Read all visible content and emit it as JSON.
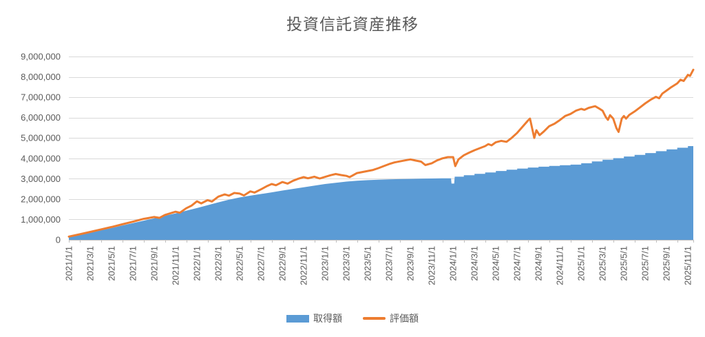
{
  "title": "投資信託資産推移",
  "legend": {
    "acquisition_label": "取得額",
    "valuation_label": "評価額"
  },
  "colors": {
    "acquisition_area": "#5B9BD5",
    "valuation_line": "#ED7D31",
    "gridline": "#D9D9D9",
    "axis": "#BFBFBF",
    "text": "#595959"
  },
  "chart_data": {
    "type": "area",
    "title": "投資信託資産推移",
    "xlabel": "",
    "ylabel": "",
    "x_unit": "months_since_2021_01_01",
    "x_max": 58.5,
    "ylim": [
      0,
      9000000
    ],
    "y_ticks": [
      0,
      1000000,
      2000000,
      3000000,
      4000000,
      5000000,
      6000000,
      7000000,
      8000000,
      9000000
    ],
    "grid": "horizontal",
    "legend_position": "bottom",
    "x_tick_interval_months": 2,
    "x_tick_labels": [
      "2021/1/1",
      "2021/3/1",
      "2021/5/1",
      "2021/7/1",
      "2021/9/1",
      "2021/11/1",
      "2022/1/1",
      "2022/3/1",
      "2022/5/1",
      "2022/7/1",
      "2022/9/1",
      "2022/11/1",
      "2023/1/1",
      "2023/3/1",
      "2023/5/1",
      "2023/7/1",
      "2023/9/1",
      "2023/11/1",
      "2024/1/1",
      "2024/3/1",
      "2024/5/1",
      "2024/7/1",
      "2024/9/1",
      "2024/11/1",
      "2025/1/1",
      "2025/3/1",
      "2025/5/1",
      "2025/7/1",
      "2025/9/1",
      "2025/11/1"
    ],
    "series": [
      {
        "name": "取得額",
        "type": "area",
        "color": "#5B9BD5",
        "points": [
          [
            0,
            150000
          ],
          [
            1,
            250000
          ],
          [
            2,
            360000
          ],
          [
            3,
            470000
          ],
          [
            4,
            580000
          ],
          [
            5,
            700000
          ],
          [
            6,
            820000
          ],
          [
            7,
            940000
          ],
          [
            8,
            1060000
          ],
          [
            9,
            1180000
          ],
          [
            10,
            1300000
          ],
          [
            11,
            1430000
          ],
          [
            12,
            1560000
          ],
          [
            13,
            1700000
          ],
          [
            14,
            1840000
          ],
          [
            15,
            1970000
          ],
          [
            16,
            2080000
          ],
          [
            17,
            2170000
          ],
          [
            18,
            2250000
          ],
          [
            19,
            2330000
          ],
          [
            20,
            2420000
          ],
          [
            21,
            2500000
          ],
          [
            22,
            2580000
          ],
          [
            23,
            2660000
          ],
          [
            24,
            2740000
          ],
          [
            25,
            2800000
          ],
          [
            26,
            2860000
          ],
          [
            27,
            2900000
          ],
          [
            28,
            2930000
          ],
          [
            29,
            2950000
          ],
          [
            30,
            2970000
          ],
          [
            31,
            2980000
          ],
          [
            32,
            2990000
          ],
          [
            33,
            3000000
          ],
          [
            34,
            3010000
          ],
          [
            35,
            3020000
          ],
          [
            35.8,
            3020000
          ],
          [
            35.85,
            2760000
          ],
          [
            36.1,
            2760000
          ],
          [
            36.15,
            3100000
          ],
          [
            37,
            3100000
          ],
          [
            37,
            3170000
          ],
          [
            38,
            3170000
          ],
          [
            38,
            3240000
          ],
          [
            39,
            3240000
          ],
          [
            39,
            3310000
          ],
          [
            40,
            3310000
          ],
          [
            40,
            3380000
          ],
          [
            41,
            3380000
          ],
          [
            41,
            3440000
          ],
          [
            42,
            3440000
          ],
          [
            42,
            3500000
          ],
          [
            43,
            3500000
          ],
          [
            43,
            3550000
          ],
          [
            44,
            3550000
          ],
          [
            44,
            3590000
          ],
          [
            45,
            3590000
          ],
          [
            45,
            3630000
          ],
          [
            46,
            3630000
          ],
          [
            46,
            3660000
          ],
          [
            47,
            3660000
          ],
          [
            47,
            3690000
          ],
          [
            48,
            3690000
          ],
          [
            48,
            3760000
          ],
          [
            49,
            3760000
          ],
          [
            49,
            3850000
          ],
          [
            50,
            3850000
          ],
          [
            50,
            3930000
          ],
          [
            51,
            3930000
          ],
          [
            51,
            4010000
          ],
          [
            52,
            4010000
          ],
          [
            52,
            4090000
          ],
          [
            53,
            4090000
          ],
          [
            53,
            4170000
          ],
          [
            54,
            4170000
          ],
          [
            54,
            4260000
          ],
          [
            55,
            4260000
          ],
          [
            55,
            4350000
          ],
          [
            56,
            4350000
          ],
          [
            56,
            4440000
          ],
          [
            57,
            4440000
          ],
          [
            57,
            4520000
          ],
          [
            58,
            4520000
          ],
          [
            58,
            4600000
          ],
          [
            58.5,
            4600000
          ]
        ]
      },
      {
        "name": "評価額",
        "type": "line",
        "color": "#ED7D31",
        "stroke_width": 3,
        "points": [
          [
            0,
            160000
          ],
          [
            1,
            270000
          ],
          [
            2,
            390000
          ],
          [
            3,
            510000
          ],
          [
            4,
            630000
          ],
          [
            5,
            760000
          ],
          [
            6,
            890000
          ],
          [
            7,
            1030000
          ],
          [
            8,
            1120000
          ],
          [
            8.5,
            1080000
          ],
          [
            9,
            1220000
          ],
          [
            10,
            1380000
          ],
          [
            10.4,
            1330000
          ],
          [
            11,
            1550000
          ],
          [
            11.5,
            1680000
          ],
          [
            12,
            1890000
          ],
          [
            12.4,
            1790000
          ],
          [
            13,
            1950000
          ],
          [
            13.4,
            1880000
          ],
          [
            14,
            2120000
          ],
          [
            14.6,
            2230000
          ],
          [
            15,
            2170000
          ],
          [
            15.5,
            2300000
          ],
          [
            16,
            2270000
          ],
          [
            16.4,
            2180000
          ],
          [
            17,
            2380000
          ],
          [
            17.4,
            2320000
          ],
          [
            18,
            2480000
          ],
          [
            18.6,
            2650000
          ],
          [
            19,
            2740000
          ],
          [
            19.4,
            2680000
          ],
          [
            20,
            2840000
          ],
          [
            20.5,
            2760000
          ],
          [
            21,
            2900000
          ],
          [
            21.5,
            3000000
          ],
          [
            22,
            3080000
          ],
          [
            22.4,
            3020000
          ],
          [
            23,
            3100000
          ],
          [
            23.5,
            3010000
          ],
          [
            24,
            3090000
          ],
          [
            24.5,
            3170000
          ],
          [
            25,
            3230000
          ],
          [
            25.5,
            3180000
          ],
          [
            26,
            3140000
          ],
          [
            26.3,
            3080000
          ],
          [
            27,
            3280000
          ],
          [
            27.5,
            3330000
          ],
          [
            28,
            3380000
          ],
          [
            28.5,
            3430000
          ],
          [
            29,
            3520000
          ],
          [
            29.5,
            3620000
          ],
          [
            30,
            3720000
          ],
          [
            30.5,
            3800000
          ],
          [
            31,
            3850000
          ],
          [
            31.5,
            3900000
          ],
          [
            32,
            3950000
          ],
          [
            32.5,
            3890000
          ],
          [
            33,
            3840000
          ],
          [
            33.4,
            3670000
          ],
          [
            34,
            3760000
          ],
          [
            34.5,
            3900000
          ],
          [
            35,
            4000000
          ],
          [
            35.5,
            4060000
          ],
          [
            36,
            4060000
          ],
          [
            36.2,
            3620000
          ],
          [
            36.5,
            3950000
          ],
          [
            37,
            4150000
          ],
          [
            37.5,
            4280000
          ],
          [
            38,
            4400000
          ],
          [
            38.5,
            4500000
          ],
          [
            39,
            4600000
          ],
          [
            39.3,
            4700000
          ],
          [
            39.6,
            4640000
          ],
          [
            40,
            4790000
          ],
          [
            40.5,
            4860000
          ],
          [
            41,
            4810000
          ],
          [
            41.5,
            5010000
          ],
          [
            42,
            5250000
          ],
          [
            42.5,
            5550000
          ],
          [
            43,
            5850000
          ],
          [
            43.2,
            5950000
          ],
          [
            43.6,
            5000000
          ],
          [
            43.8,
            5380000
          ],
          [
            44.1,
            5140000
          ],
          [
            44.5,
            5320000
          ],
          [
            45,
            5580000
          ],
          [
            45.5,
            5700000
          ],
          [
            46,
            5880000
          ],
          [
            46.5,
            6080000
          ],
          [
            47,
            6180000
          ],
          [
            47.5,
            6340000
          ],
          [
            48,
            6430000
          ],
          [
            48.3,
            6380000
          ],
          [
            48.7,
            6480000
          ],
          [
            49,
            6520000
          ],
          [
            49.3,
            6560000
          ],
          [
            49.7,
            6440000
          ],
          [
            50,
            6340000
          ],
          [
            50.3,
            6030000
          ],
          [
            50.5,
            5890000
          ],
          [
            50.7,
            6120000
          ],
          [
            51,
            5950000
          ],
          [
            51.3,
            5480000
          ],
          [
            51.5,
            5300000
          ],
          [
            51.8,
            5950000
          ],
          [
            52,
            6080000
          ],
          [
            52.2,
            5950000
          ],
          [
            52.5,
            6130000
          ],
          [
            53,
            6300000
          ],
          [
            53.5,
            6500000
          ],
          [
            54,
            6700000
          ],
          [
            54.5,
            6880000
          ],
          [
            55,
            7020000
          ],
          [
            55.3,
            6950000
          ],
          [
            55.6,
            7180000
          ],
          [
            56,
            7330000
          ],
          [
            56.4,
            7480000
          ],
          [
            57,
            7680000
          ],
          [
            57.3,
            7860000
          ],
          [
            57.6,
            7800000
          ],
          [
            58,
            8100000
          ],
          [
            58.2,
            8050000
          ],
          [
            58.5,
            8350000
          ]
        ]
      }
    ]
  }
}
